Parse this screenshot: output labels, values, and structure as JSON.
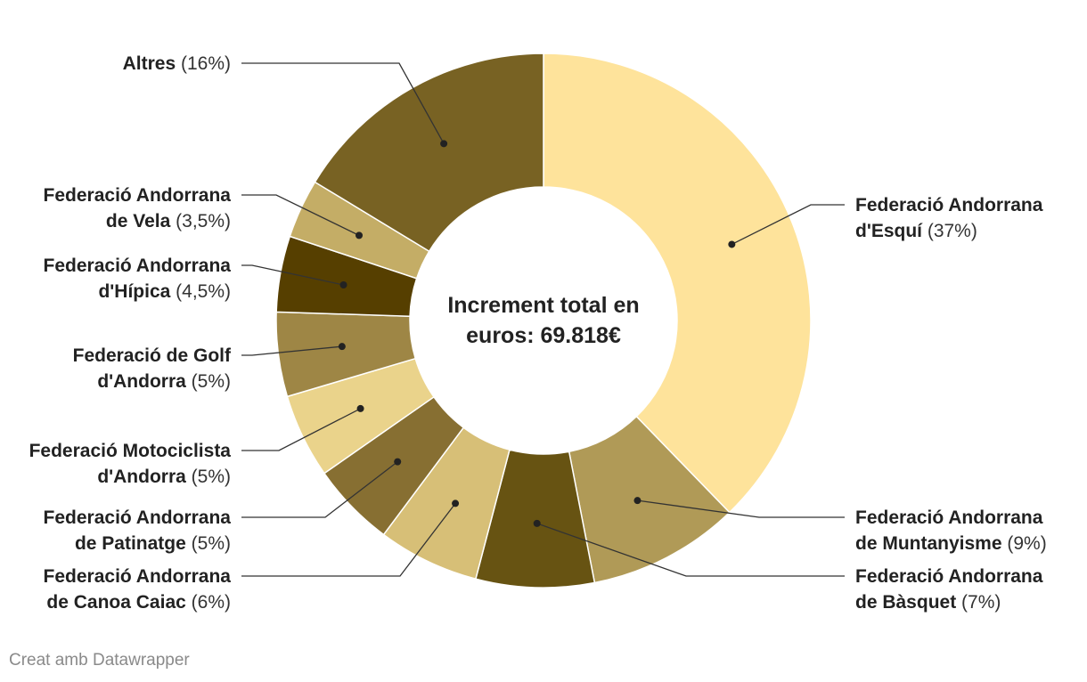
{
  "chart_data": {
    "type": "pie",
    "variant": "donut",
    "center_label": [
      "Increment total en",
      "euros: 69.818€"
    ],
    "start_angle_deg": 0,
    "direction": "clockwise",
    "slices": [
      {
        "name_lines": [
          "Federació Andorrana",
          "d'Esquí"
        ],
        "pct_label": "(37%)",
        "value": 37,
        "color": "#fee39b"
      },
      {
        "name_lines": [
          "Federació Andorrana",
          "de Muntanyisme"
        ],
        "pct_label": "(9%)",
        "value": 9,
        "color": "#b09a57"
      },
      {
        "name_lines": [
          "Federació Andorrana",
          "de Bàsquet"
        ],
        "pct_label": "(7%)",
        "value": 7,
        "color": "#675312"
      },
      {
        "name_lines": [
          "Federació Andorrana",
          "de Canoa Caiac"
        ],
        "pct_label": "(6%)",
        "value": 6,
        "color": "#d7bf77"
      },
      {
        "name_lines": [
          "Federació Andorrana",
          "de Patinatge"
        ],
        "pct_label": "(5%)",
        "value": 5,
        "color": "#876f32"
      },
      {
        "name_lines": [
          "Federació Motociclista",
          "d'Andorra"
        ],
        "pct_label": "(5%)",
        "value": 5,
        "color": "#ead38b"
      },
      {
        "name_lines": [
          "Federació de Golf",
          "d'Andorra"
        ],
        "pct_label": "(5%)",
        "value": 5,
        "color": "#9e8645"
      },
      {
        "name_lines": [
          "Federació Andorrana",
          "d'Hípica"
        ],
        "pct_label": "(4,5%)",
        "value": 4.5,
        "color": "#563f00"
      },
      {
        "name_lines": [
          "Federació Andorrana",
          "de Vela"
        ],
        "pct_label": "(3,5%)",
        "value": 3.5,
        "color": "#c4ad66"
      },
      {
        "name_lines": [
          "Altres"
        ],
        "pct_label": "(16%)",
        "value": 16,
        "color": "#786223"
      }
    ]
  },
  "credit": "Creat amb Datawrapper"
}
